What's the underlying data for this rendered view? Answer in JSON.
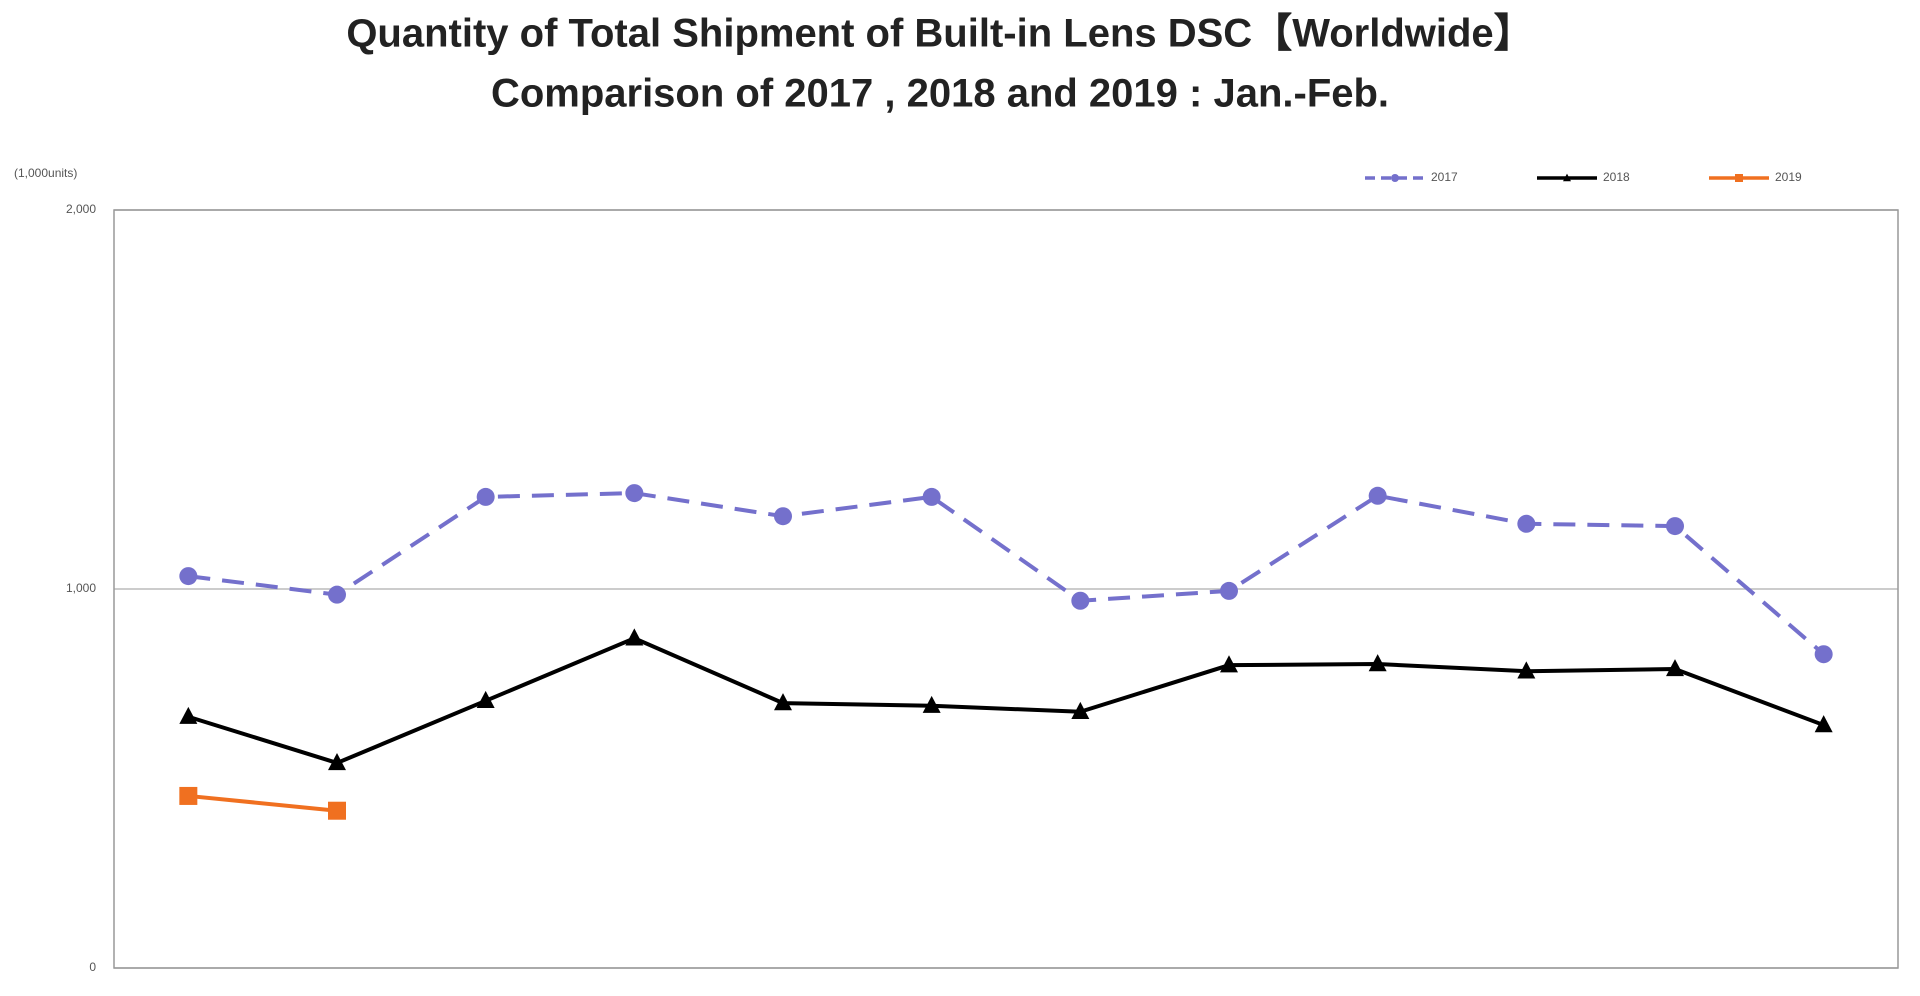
{
  "chart_data": {
    "type": "line",
    "title": "Quantity of Total Shipment of Built-in Lens DSC【Worldwide】",
    "subtitle": "Comparison of 2017 , 2018 and 2019 : Jan.-Feb.",
    "y_axis_label": "(1,000units)",
    "categories": [
      null,
      null,
      null,
      null,
      null,
      null,
      null,
      null,
      null,
      null,
      null,
      null
    ],
    "series": [
      {
        "name": "2017",
        "color": "#7470cc",
        "dash": true,
        "marker": "circle",
        "values": [
          1034,
          985,
          1243,
          1253,
          1192,
          1243,
          969,
          995,
          1246,
          1172,
          1166,
          828
        ]
      },
      {
        "name": "2018",
        "color": "#000000",
        "dash": false,
        "marker": "triangle",
        "values": [
          663,
          541,
          705,
          870,
          699,
          692,
          676,
          799,
          802,
          783,
          789,
          641
        ]
      },
      {
        "name": "2019",
        "color": "#f07020",
        "dash": false,
        "marker": "square",
        "values": [
          454,
          415,
          null,
          null,
          null,
          null,
          null,
          null,
          null,
          null,
          null,
          null
        ]
      }
    ],
    "ylim": [
      0,
      2000
    ],
    "yticks": [
      0,
      {
        "value": 1000,
        "label": "1,000"
      },
      {
        "value": 2000,
        "label": "2,000"
      }
    ],
    "grid": true,
    "legend": "top-right"
  }
}
